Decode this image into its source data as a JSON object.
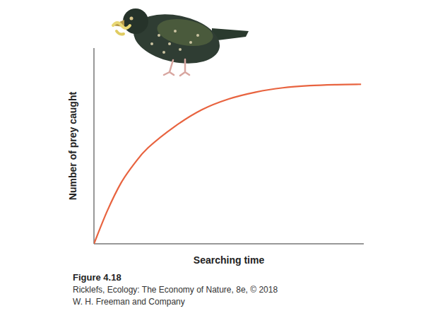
{
  "chart_data": {
    "type": "line",
    "x_label": "Searching time",
    "y_label": "Number of prey caught",
    "x": [
      0,
      0.5,
      1,
      1.5,
      2,
      3,
      4,
      5,
      6,
      7,
      8,
      9,
      9.9
    ],
    "values": [
      0,
      1.7,
      3.1,
      4.1,
      4.9,
      6.0,
      6.85,
      7.4,
      7.75,
      7.97,
      8.08,
      8.13,
      8.15
    ],
    "color": "#e8633f",
    "xlim": [
      0,
      10
    ],
    "ylim": [
      0,
      10
    ],
    "tick_labels": false,
    "grid": false
  },
  "figure_caption": {
    "label": "Figure 4.18",
    "credit": [
      "Ricklefs, Ecology: The Economy of Nature, 8e, © 2018",
      "W. H. Freeman and Company"
    ]
  }
}
